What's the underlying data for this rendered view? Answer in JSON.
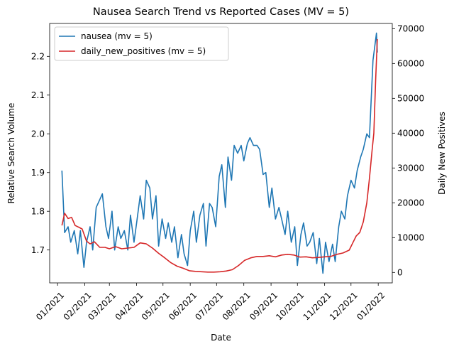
{
  "chart_data": {
    "type": "line",
    "title": "Nausea Search Trend vs Reported Cases (MV = 5)",
    "xlabel": "Date",
    "ylabel_left": "Relative Search Volume",
    "ylabel_right": "Daily New Positives",
    "x_ticks": [
      "01/2021",
      "02/2021",
      "03/2021",
      "04/2021",
      "05/2021",
      "06/2021",
      "07/2021",
      "08/2021",
      "09/2021",
      "10/2021",
      "11/2021",
      "12/2021",
      "01/2022"
    ],
    "ylim_left": [
      1.615,
      2.285
    ],
    "ylim_right": [
      -3000,
      71500
    ],
    "y_ticks_left": [
      1.7,
      1.8,
      1.9,
      2.0,
      2.1,
      2.2
    ],
    "y_ticks_left_labels": [
      "1.7",
      "1.8",
      "1.9",
      "2.0",
      "2.1",
      "2.2"
    ],
    "y_ticks_right": [
      0,
      10000,
      20000,
      30000,
      40000,
      50000,
      60000,
      70000
    ],
    "y_ticks_right_labels": [
      "0",
      "10000",
      "20000",
      "30000",
      "40000",
      "50000",
      "60000",
      "70000"
    ],
    "legend_position": "upper-left",
    "grid": false,
    "series": [
      {
        "name": "nausea (mv = 5)",
        "axis": "left",
        "color": "#1f77b4",
        "x": [
          "2021-01-06",
          "2021-01-09",
          "2021-01-13",
          "2021-01-16",
          "2021-01-20",
          "2021-01-24",
          "2021-01-27",
          "2021-01-31",
          "2021-02-03",
          "2021-02-07",
          "2021-02-10",
          "2021-02-14",
          "2021-02-18",
          "2021-02-21",
          "2021-02-25",
          "2021-02-28",
          "2021-03-04",
          "2021-03-07",
          "2021-03-11",
          "2021-03-14",
          "2021-03-18",
          "2021-03-22",
          "2021-03-25",
          "2021-03-29",
          "2021-04-01",
          "2021-04-05",
          "2021-04-09",
          "2021-04-12",
          "2021-04-16",
          "2021-04-19",
          "2021-04-23",
          "2021-04-26",
          "2021-04-30",
          "2021-05-04",
          "2021-05-07",
          "2021-05-11",
          "2021-05-14",
          "2021-05-18",
          "2021-05-22",
          "2021-05-25",
          "2021-05-29",
          "2021-06-01",
          "2021-06-05",
          "2021-06-08",
          "2021-06-12",
          "2021-06-16",
          "2021-06-19",
          "2021-06-23",
          "2021-06-26",
          "2021-06-30",
          "2021-07-04",
          "2021-07-07",
          "2021-07-11",
          "2021-07-14",
          "2021-07-18",
          "2021-07-21",
          "2021-07-25",
          "2021-07-29",
          "2021-08-01",
          "2021-08-05",
          "2021-08-08",
          "2021-08-12",
          "2021-08-16",
          "2021-08-19",
          "2021-08-23",
          "2021-08-26",
          "2021-08-30",
          "2021-09-02",
          "2021-09-06",
          "2021-09-10",
          "2021-09-13",
          "2021-09-17",
          "2021-09-20",
          "2021-09-24",
          "2021-09-28",
          "2021-10-01",
          "2021-10-05",
          "2021-10-08",
          "2021-10-12",
          "2021-10-15",
          "2021-10-19",
          "2021-10-23",
          "2021-10-26",
          "2021-10-30",
          "2021-11-02",
          "2021-11-06",
          "2021-11-10",
          "2021-11-13",
          "2021-11-17",
          "2021-11-20",
          "2021-11-24",
          "2021-11-27",
          "2021-12-01",
          "2021-12-05",
          "2021-12-08",
          "2021-12-12",
          "2021-12-15",
          "2021-12-19",
          "2021-12-22",
          "2021-12-26",
          "2021-12-30",
          "2021-12-31"
        ],
        "values": [
          1.905,
          1.745,
          1.76,
          1.72,
          1.75,
          1.69,
          1.75,
          1.655,
          1.72,
          1.76,
          1.7,
          1.81,
          1.83,
          1.845,
          1.76,
          1.73,
          1.8,
          1.7,
          1.76,
          1.73,
          1.75,
          1.7,
          1.79,
          1.72,
          1.77,
          1.84,
          1.78,
          1.88,
          1.86,
          1.78,
          1.84,
          1.71,
          1.78,
          1.73,
          1.77,
          1.72,
          1.76,
          1.68,
          1.74,
          1.69,
          1.66,
          1.75,
          1.8,
          1.72,
          1.79,
          1.82,
          1.71,
          1.82,
          1.81,
          1.76,
          1.89,
          1.92,
          1.81,
          1.94,
          1.88,
          1.97,
          1.95,
          1.97,
          1.93,
          1.975,
          1.99,
          1.97,
          1.97,
          1.96,
          1.895,
          1.9,
          1.81,
          1.86,
          1.78,
          1.81,
          1.78,
          1.74,
          1.8,
          1.72,
          1.76,
          1.66,
          1.74,
          1.77,
          1.71,
          1.72,
          1.745,
          1.665,
          1.73,
          1.64,
          1.72,
          1.67,
          1.715,
          1.67,
          1.76,
          1.8,
          1.78,
          1.84,
          1.88,
          1.86,
          1.905,
          1.94,
          1.96,
          2.0,
          1.99,
          2.19,
          2.26,
          2.21
        ]
      },
      {
        "name": "daily_new_positives (mv = 5)",
        "axis": "right",
        "color": "#d62728",
        "x": [
          "2021-01-06",
          "2021-01-09",
          "2021-01-13",
          "2021-01-17",
          "2021-01-21",
          "2021-01-25",
          "2021-01-29",
          "2021-02-03",
          "2021-02-07",
          "2021-02-12",
          "2021-02-18",
          "2021-02-24",
          "2021-03-01",
          "2021-03-08",
          "2021-03-15",
          "2021-03-22",
          "2021-03-29",
          "2021-04-05",
          "2021-04-12",
          "2021-04-19",
          "2021-04-26",
          "2021-05-03",
          "2021-05-10",
          "2021-05-17",
          "2021-05-24",
          "2021-05-31",
          "2021-06-07",
          "2021-06-14",
          "2021-06-21",
          "2021-06-28",
          "2021-07-05",
          "2021-07-12",
          "2021-07-19",
          "2021-07-26",
          "2021-08-02",
          "2021-08-09",
          "2021-08-16",
          "2021-08-23",
          "2021-08-30",
          "2021-09-06",
          "2021-09-13",
          "2021-09-20",
          "2021-09-27",
          "2021-10-04",
          "2021-10-11",
          "2021-10-18",
          "2021-10-25",
          "2021-11-01",
          "2021-11-08",
          "2021-11-15",
          "2021-11-22",
          "2021-11-29",
          "2021-12-03",
          "2021-12-07",
          "2021-12-11",
          "2021-12-15",
          "2021-12-19",
          "2021-12-22",
          "2021-12-25",
          "2021-12-27",
          "2021-12-29",
          "2021-12-31"
        ],
        "values": [
          13500,
          17000,
          15500,
          15800,
          13500,
          13000,
          12500,
          9000,
          8200,
          8800,
          7200,
          7200,
          6800,
          7400,
          6800,
          7000,
          7200,
          8500,
          8200,
          7000,
          5500,
          4200,
          2800,
          1800,
          1200,
          500,
          300,
          200,
          100,
          100,
          200,
          400,
          800,
          2000,
          3500,
          4200,
          4600,
          4600,
          4800,
          4500,
          5000,
          5200,
          5000,
          4400,
          4500,
          4200,
          4300,
          4500,
          4600,
          5200,
          5600,
          6400,
          8500,
          10500,
          11500,
          14500,
          20000,
          27000,
          35000,
          40000,
          55000,
          67000
        ]
      }
    ]
  }
}
